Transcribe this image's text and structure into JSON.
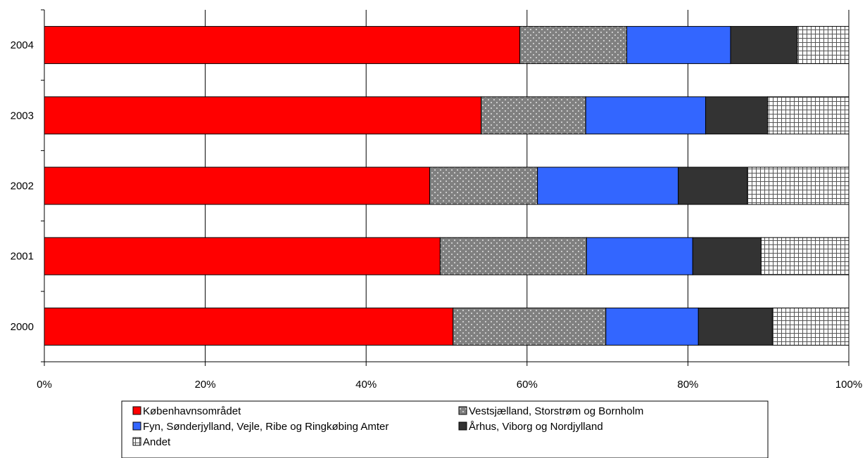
{
  "chart_data": {
    "type": "bar",
    "orientation": "horizontal",
    "stacked": "percent",
    "title": "",
    "xlabel": "",
    "ylabel": "",
    "xlim": [
      0,
      100
    ],
    "x_ticks": [
      "0%",
      "20%",
      "40%",
      "60%",
      "80%",
      "100%"
    ],
    "grid": "vertical",
    "legend_position": "bottom",
    "categories": [
      "2000",
      "2001",
      "2002",
      "2003",
      "2004"
    ],
    "series": [
      {
        "name": "Københavnsområdet",
        "values": [
          50.8,
          49.2,
          47.9,
          54.3,
          59.1
        ],
        "color": "#ff0000",
        "pattern": "solid"
      },
      {
        "name": "Vestsjælland, Storstrøm og Bornholm",
        "values": [
          19.0,
          18.2,
          13.4,
          13.0,
          13.3
        ],
        "color": "#808080",
        "pattern": "dotted"
      },
      {
        "name": "Fyn, Sønderjylland, Vejle, Ribe og Ringkøbing Amter",
        "values": [
          11.5,
          13.2,
          17.5,
          14.9,
          12.9
        ],
        "color": "#3366ff",
        "pattern": "solid"
      },
      {
        "name": "Århus, Viborg og Nordjylland",
        "values": [
          9.2,
          8.5,
          8.6,
          7.7,
          8.3
        ],
        "color": "#333333",
        "pattern": "solid"
      },
      {
        "name": "Andet",
        "values": [
          9.5,
          10.9,
          12.6,
          10.1,
          6.4
        ],
        "color": "#ffffff",
        "pattern": "grid"
      }
    ]
  }
}
